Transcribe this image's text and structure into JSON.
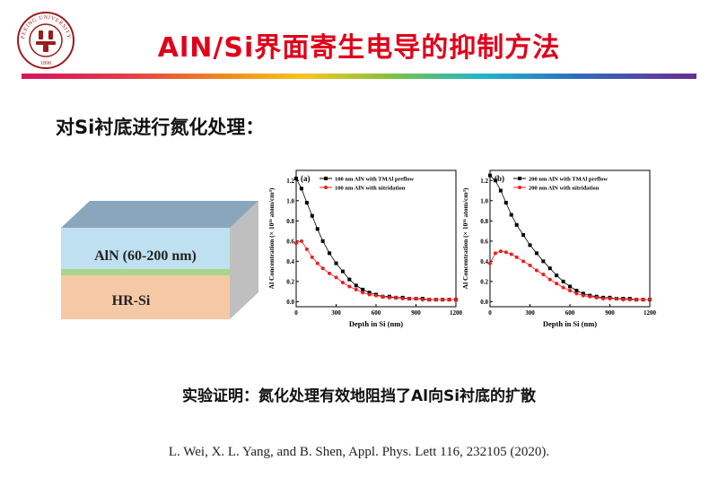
{
  "slide": {
    "title": "AlN/Si界面寄生电导的抑制方法",
    "subtitle": "对Si衬底进行氮化处理：",
    "conclusion": "实验证明：氮化处理有效地阻挡了Al向Si衬底的扩散",
    "citation": "L. Wei, X. L. Yang, and B. Shen,  Appl. Phys. Lett 116, 232105 (2020)."
  },
  "logo": {
    "icon": "pku-seal-icon",
    "text": "PEKING UNIVERSITY",
    "year": "1898"
  },
  "layer_diagram": {
    "top_label": "AlN (60-200 nm)",
    "bottom_label": "HR-Si",
    "colors": {
      "top": "#bfe0f0",
      "top_face": "#8aa6bd",
      "interlayer": "#a8d58a",
      "bottom": "#f6c9a6"
    }
  },
  "chart_data": [
    {
      "type": "scatter",
      "panel": "(a)",
      "xlabel": "Depth in Si (nm)",
      "ylabel": "Al Concentration (× 10¹⁶ atom/cm³)",
      "xlim": [
        0,
        1200
      ],
      "ylim": [
        -0.05,
        1.3
      ],
      "xticks": [
        0,
        300,
        600,
        900,
        1200
      ],
      "yticks": [
        0.0,
        0.2,
        0.4,
        0.6,
        0.8,
        1.0,
        1.2
      ],
      "series": [
        {
          "name": "100 nm AlN with TMAl preflow",
          "color": "#000000",
          "marker": "square",
          "x": [
            0,
            40,
            80,
            120,
            160,
            200,
            250,
            300,
            350,
            400,
            450,
            500,
            550,
            600,
            650,
            700,
            750,
            800,
            850,
            900,
            950,
            1000,
            1050,
            1100,
            1150,
            1200
          ],
          "y": [
            1.22,
            1.12,
            0.98,
            0.85,
            0.72,
            0.6,
            0.48,
            0.38,
            0.3,
            0.22,
            0.16,
            0.12,
            0.09,
            0.07,
            0.05,
            0.05,
            0.04,
            0.04,
            0.03,
            0.03,
            0.03,
            0.02,
            0.02,
            0.02,
            0.02,
            0.02
          ]
        },
        {
          "name": "100 nm AlN with nitridation",
          "color": "#ee1c1c",
          "marker": "circle",
          "x": [
            0,
            40,
            80,
            120,
            160,
            200,
            250,
            300,
            350,
            400,
            450,
            500,
            550,
            600,
            650,
            700,
            750,
            800,
            850,
            900,
            950,
            1000,
            1050,
            1100,
            1150,
            1200
          ],
          "y": [
            0.58,
            0.6,
            0.52,
            0.44,
            0.38,
            0.33,
            0.28,
            0.24,
            0.19,
            0.15,
            0.12,
            0.09,
            0.07,
            0.06,
            0.05,
            0.04,
            0.04,
            0.03,
            0.03,
            0.03,
            0.02,
            0.02,
            0.02,
            0.02,
            0.02,
            0.02
          ]
        }
      ]
    },
    {
      "type": "scatter",
      "panel": "(b)",
      "xlabel": "Depth in Si (nm)",
      "ylabel": "Al Concentration (× 10¹⁶ atom/cm³)",
      "xlim": [
        0,
        1200
      ],
      "ylim": [
        -0.05,
        1.3
      ],
      "xticks": [
        0,
        300,
        600,
        900,
        1200
      ],
      "yticks": [
        0.0,
        0.2,
        0.4,
        0.6,
        0.8,
        1.0,
        1.2
      ],
      "series": [
        {
          "name": "200 nm AlN with TMAl preflow",
          "color": "#000000",
          "marker": "square",
          "x": [
            0,
            40,
            80,
            120,
            160,
            200,
            250,
            300,
            350,
            400,
            450,
            500,
            550,
            600,
            650,
            700,
            750,
            800,
            850,
            900,
            950,
            1000,
            1050,
            1100,
            1150,
            1200
          ],
          "y": [
            1.25,
            1.2,
            1.1,
            0.98,
            0.86,
            0.76,
            0.66,
            0.56,
            0.48,
            0.4,
            0.33,
            0.26,
            0.2,
            0.15,
            0.11,
            0.08,
            0.06,
            0.05,
            0.04,
            0.04,
            0.03,
            0.03,
            0.03,
            0.02,
            0.02,
            0.02
          ]
        },
        {
          "name": "200 nm AlN with nitridation",
          "color": "#ee1c1c",
          "marker": "circle",
          "x": [
            0,
            40,
            80,
            120,
            160,
            200,
            250,
            300,
            350,
            400,
            450,
            500,
            550,
            600,
            650,
            700,
            750,
            800,
            850,
            900,
            950,
            1000,
            1050,
            1100,
            1150,
            1200
          ],
          "y": [
            0.38,
            0.48,
            0.5,
            0.49,
            0.47,
            0.44,
            0.4,
            0.36,
            0.31,
            0.27,
            0.22,
            0.18,
            0.14,
            0.11,
            0.08,
            0.06,
            0.05,
            0.04,
            0.03,
            0.03,
            0.03,
            0.02,
            0.02,
            0.02,
            0.02,
            0.02
          ]
        }
      ]
    }
  ]
}
